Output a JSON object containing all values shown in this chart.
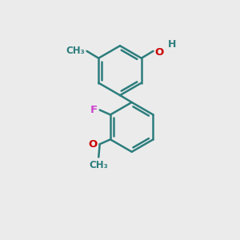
{
  "background_color": "#ebebeb",
  "bond_color": "#2d7d7d",
  "bond_width": 1.8,
  "color_O": "#cc0000",
  "color_F": "#cc44cc",
  "color_H": "#2d7d7d",
  "figsize": [
    3.0,
    3.0
  ],
  "dpi": 100,
  "xlim": [
    0,
    10
  ],
  "ylim": [
    0,
    10
  ]
}
